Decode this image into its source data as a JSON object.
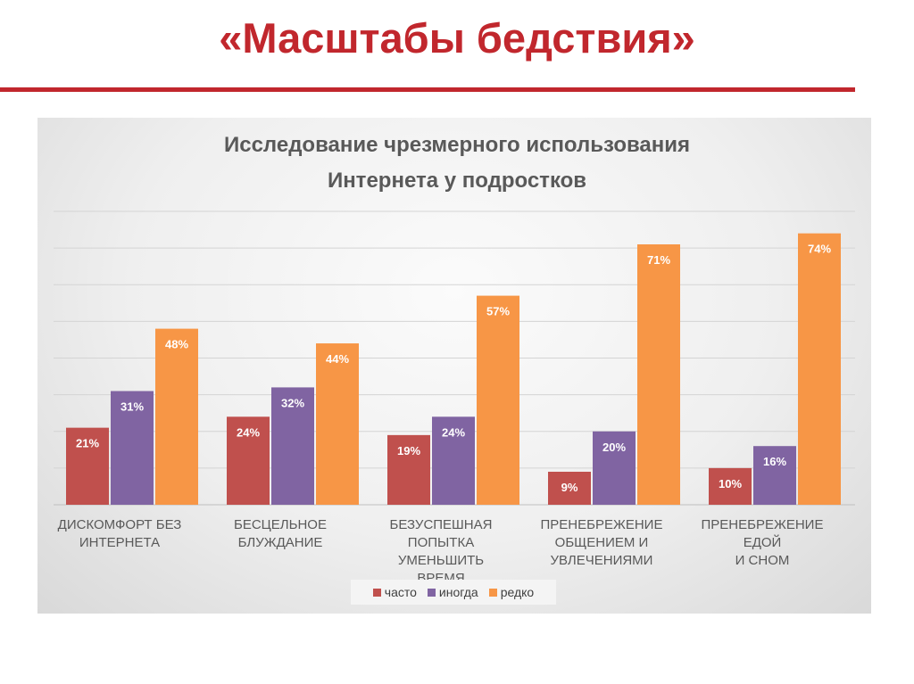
{
  "slide": {
    "title": "«Масштабы бедствия»"
  },
  "chart_data": {
    "type": "bar",
    "title_lines": [
      "Исследование чрезмерного использования",
      "Интернета у подростков"
    ],
    "categories": [
      [
        "ДИСКОМФОРТ БЕЗ",
        "ИНТЕРНЕТА"
      ],
      [
        "БЕСЦЕЛЬНОЕ",
        "БЛУЖДАНИЕ"
      ],
      [
        "БЕЗУСПЕШНАЯ",
        "ПОПЫТКА УМЕНЬШИТЬ",
        "ВРЕМЯ"
      ],
      [
        "ПРЕНЕБРЕЖЕНИЕ",
        "ОБЩЕНИЕМ И",
        "УВЛЕЧЕНИЯМИ"
      ],
      [
        "ПРЕНЕБРЕЖЕНИЕ ЕДОЙ",
        "И СНОМ"
      ]
    ],
    "series": [
      {
        "name": "часто",
        "color": "#c0504d",
        "values": [
          21,
          24,
          19,
          9,
          10
        ],
        "labels": [
          "21%",
          "24%",
          "19%",
          "9%",
          "10%"
        ]
      },
      {
        "name": "иногда",
        "color": "#8064a2",
        "values": [
          31,
          32,
          24,
          20,
          16
        ],
        "labels": [
          "31%",
          "32%",
          "24%",
          "20%",
          "16%"
        ]
      },
      {
        "name": "редко",
        "color": "#f79646",
        "values": [
          48,
          44,
          57,
          71,
          74
        ],
        "labels": [
          "48%",
          "44%",
          "57%",
          "71%",
          "74%"
        ]
      }
    ],
    "ylim": [
      0,
      80
    ],
    "grid": true,
    "legend_position": "bottom"
  }
}
